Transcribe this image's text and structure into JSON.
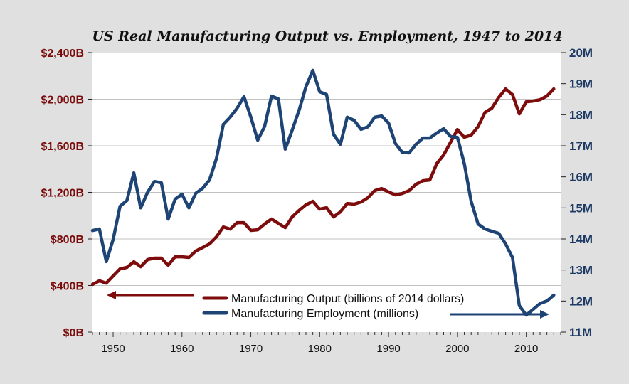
{
  "chart_data": {
    "type": "line",
    "title": "US Real Manufacturing Output vs. Employment, 1947 to 2014",
    "xlabel": "",
    "ylabel_left": "Manufacturing Output (billions of 2014 dollars)",
    "ylabel_right": "Manufacturing Employment (millions)",
    "xlim": [
      1947,
      2015
    ],
    "ylim_left": [
      0,
      2400
    ],
    "ylim_right": [
      11,
      20
    ],
    "grid": true,
    "legend_position": "bottom-center",
    "x_ticks": [
      1950,
      1960,
      1970,
      1980,
      1990,
      2000,
      2010
    ],
    "x_tick_labels": [
      "1950",
      "1960",
      "1970",
      "1980",
      "1990",
      "2000",
      "2010"
    ],
    "left_ticks": [
      0,
      400,
      800,
      1200,
      1600,
      2000,
      2400
    ],
    "left_tick_labels": [
      "$0B",
      "$400B",
      "$800B",
      "$1,200B",
      "$1,600B",
      "$2,000B",
      "$2,400B"
    ],
    "right_ticks": [
      11,
      12,
      13,
      14,
      15,
      16,
      17,
      18,
      19,
      20
    ],
    "right_tick_labels": [
      "11M",
      "12M",
      "13M",
      "14M",
      "15M",
      "16M",
      "17M",
      "18M",
      "19M",
      "20M"
    ],
    "x": [
      1947,
      1948,
      1949,
      1950,
      1951,
      1952,
      1953,
      1954,
      1955,
      1956,
      1957,
      1958,
      1959,
      1960,
      1961,
      1962,
      1963,
      1964,
      1965,
      1966,
      1967,
      1968,
      1969,
      1970,
      1971,
      1972,
      1973,
      1974,
      1975,
      1976,
      1977,
      1978,
      1979,
      1980,
      1981,
      1982,
      1983,
      1984,
      1985,
      1986,
      1987,
      1988,
      1989,
      1990,
      1991,
      1992,
      1993,
      1994,
      1995,
      1996,
      1997,
      1998,
      1999,
      2000,
      2001,
      2002,
      2003,
      2004,
      2005,
      2006,
      2007,
      2008,
      2009,
      2010,
      2011,
      2012,
      2013,
      2014
    ],
    "series": [
      {
        "name": "Manufacturing Output (billions of 2014 dollars)",
        "axis": "left",
        "color": "#7f0c0c",
        "legend_arrow": "left",
        "values": [
          409,
          440,
          421,
          482,
          543,
          556,
          604,
          562,
          623,
          635,
          635,
          574,
          647,
          647,
          641,
          696,
          726,
          757,
          818,
          903,
          885,
          940,
          940,
          873,
          879,
          928,
          971,
          934,
          897,
          989,
          1044,
          1093,
          1123,
          1056,
          1068,
          989,
          1032,
          1105,
          1099,
          1117,
          1154,
          1215,
          1233,
          1203,
          1178,
          1190,
          1215,
          1270,
          1300,
          1306,
          1447,
          1520,
          1630,
          1740,
          1673,
          1691,
          1764,
          1886,
          1923,
          2015,
          2088,
          2039,
          1874,
          1978,
          1984,
          1996,
          2027,
          2088
        ]
      },
      {
        "name": "Manufacturing Employment (millions)",
        "axis": "right",
        "color": "#1e4475",
        "legend_arrow": "right",
        "values": [
          14.27,
          14.32,
          13.27,
          13.98,
          15.05,
          15.24,
          16.13,
          15.0,
          15.5,
          15.85,
          15.81,
          14.64,
          15.28,
          15.44,
          15.0,
          15.47,
          15.63,
          15.9,
          16.59,
          17.69,
          17.92,
          18.21,
          18.58,
          17.92,
          17.18,
          17.62,
          18.6,
          18.51,
          16.89,
          17.5,
          18.14,
          18.9,
          19.43,
          18.74,
          18.65,
          17.37,
          17.05,
          17.92,
          17.82,
          17.53,
          17.61,
          17.92,
          17.96,
          17.73,
          17.07,
          16.79,
          16.77,
          17.05,
          17.25,
          17.25,
          17.41,
          17.55,
          17.3,
          17.27,
          16.43,
          15.21,
          14.48,
          14.32,
          14.25,
          14.18,
          13.84,
          13.4,
          11.85,
          11.55,
          11.73,
          11.92,
          12.0,
          12.19
        ]
      }
    ]
  }
}
